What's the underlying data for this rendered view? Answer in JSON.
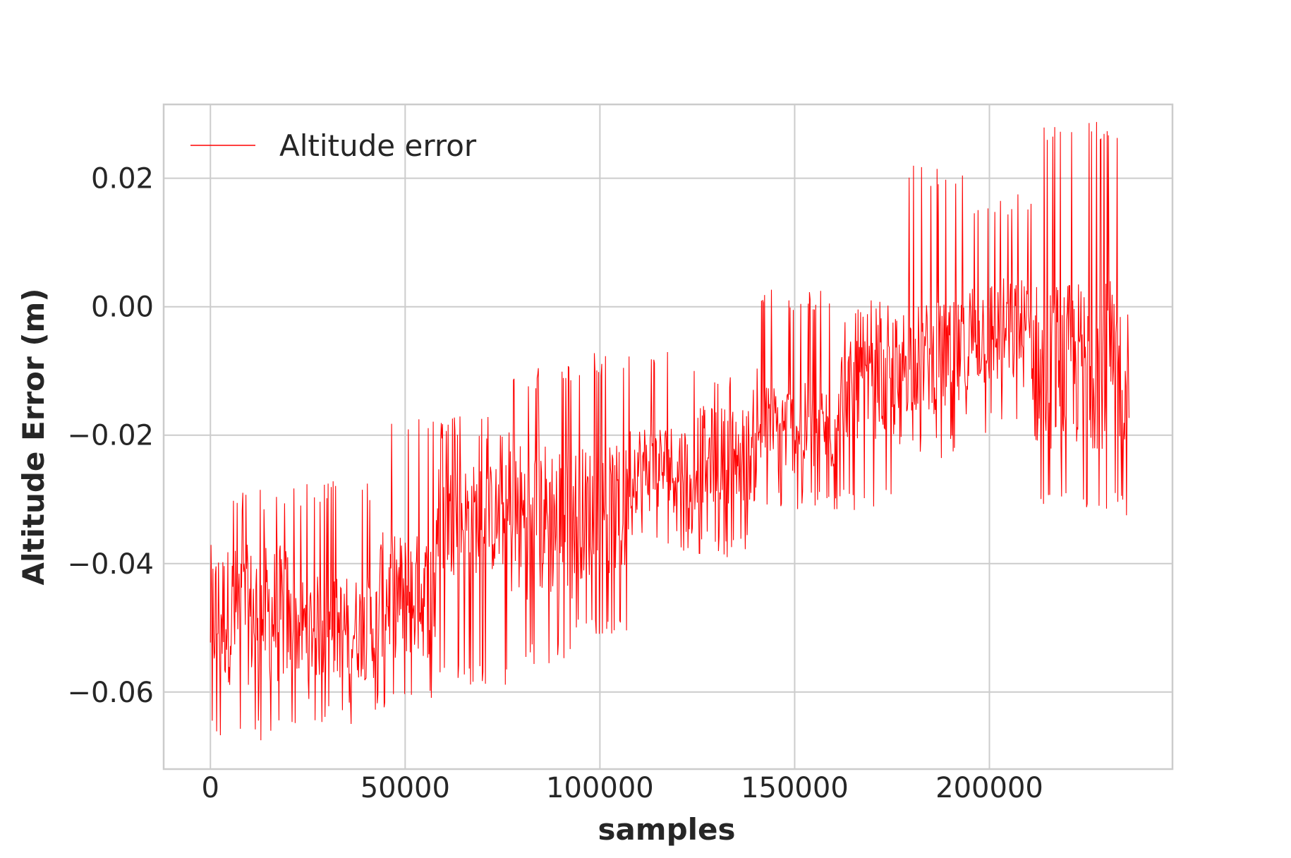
{
  "chart_data": {
    "type": "line",
    "title": "",
    "xlabel": "samples",
    "ylabel": "Altitude Error (m)",
    "xlim": [
      -12000,
      247000
    ],
    "ylim": [
      -0.072,
      0.0315
    ],
    "grid": true,
    "legend_placement": "top-left",
    "x_ticks": [
      0,
      50000,
      100000,
      150000,
      200000
    ],
    "x_tick_labels": [
      "0",
      "50000",
      "100000",
      "150000",
      "200000"
    ],
    "y_ticks": [
      -0.06,
      -0.04,
      -0.02,
      0.0,
      0.02
    ],
    "y_tick_labels": [
      "−0.06",
      "−0.04",
      "−0.02",
      "0.00",
      "0.02"
    ],
    "series": [
      {
        "name": "Altitude error",
        "color": "#ff0000",
        "x_range": [
          0,
          236000
        ],
        "segments": [
          {
            "x0": 0,
            "x1": 20000,
            "center": -0.048,
            "low": -0.068,
            "high": -0.028
          },
          {
            "x0": 20000,
            "x1": 43000,
            "center": -0.05,
            "low": -0.065,
            "high": -0.027
          },
          {
            "x0": 43000,
            "x1": 58000,
            "center": -0.045,
            "low": -0.063,
            "high": -0.017
          },
          {
            "x0": 58000,
            "x1": 77000,
            "center": -0.033,
            "low": -0.059,
            "high": -0.017
          },
          {
            "x0": 77000,
            "x1": 93000,
            "center": -0.033,
            "low": -0.056,
            "high": -0.009
          },
          {
            "x0": 93000,
            "x1": 107000,
            "center": -0.032,
            "low": -0.051,
            "high": -0.007
          },
          {
            "x0": 107000,
            "x1": 125000,
            "center": -0.025,
            "low": -0.038,
            "high": -0.007
          },
          {
            "x0": 125000,
            "x1": 141000,
            "center": -0.023,
            "low": -0.039,
            "high": -0.009
          },
          {
            "x0": 141000,
            "x1": 161000,
            "center": -0.019,
            "low": -0.032,
            "high": 0.003
          },
          {
            "x0": 161000,
            "x1": 177000,
            "center": -0.013,
            "low": -0.032,
            "high": 0.001
          },
          {
            "x0": 177000,
            "x1": 195000,
            "center": -0.008,
            "low": -0.024,
            "high": 0.022
          },
          {
            "x0": 195000,
            "x1": 211000,
            "center": -0.004,
            "low": -0.02,
            "high": 0.018
          },
          {
            "x0": 211000,
            "x1": 236000,
            "center": -0.009,
            "low": -0.033,
            "high": 0.029
          }
        ]
      }
    ]
  }
}
